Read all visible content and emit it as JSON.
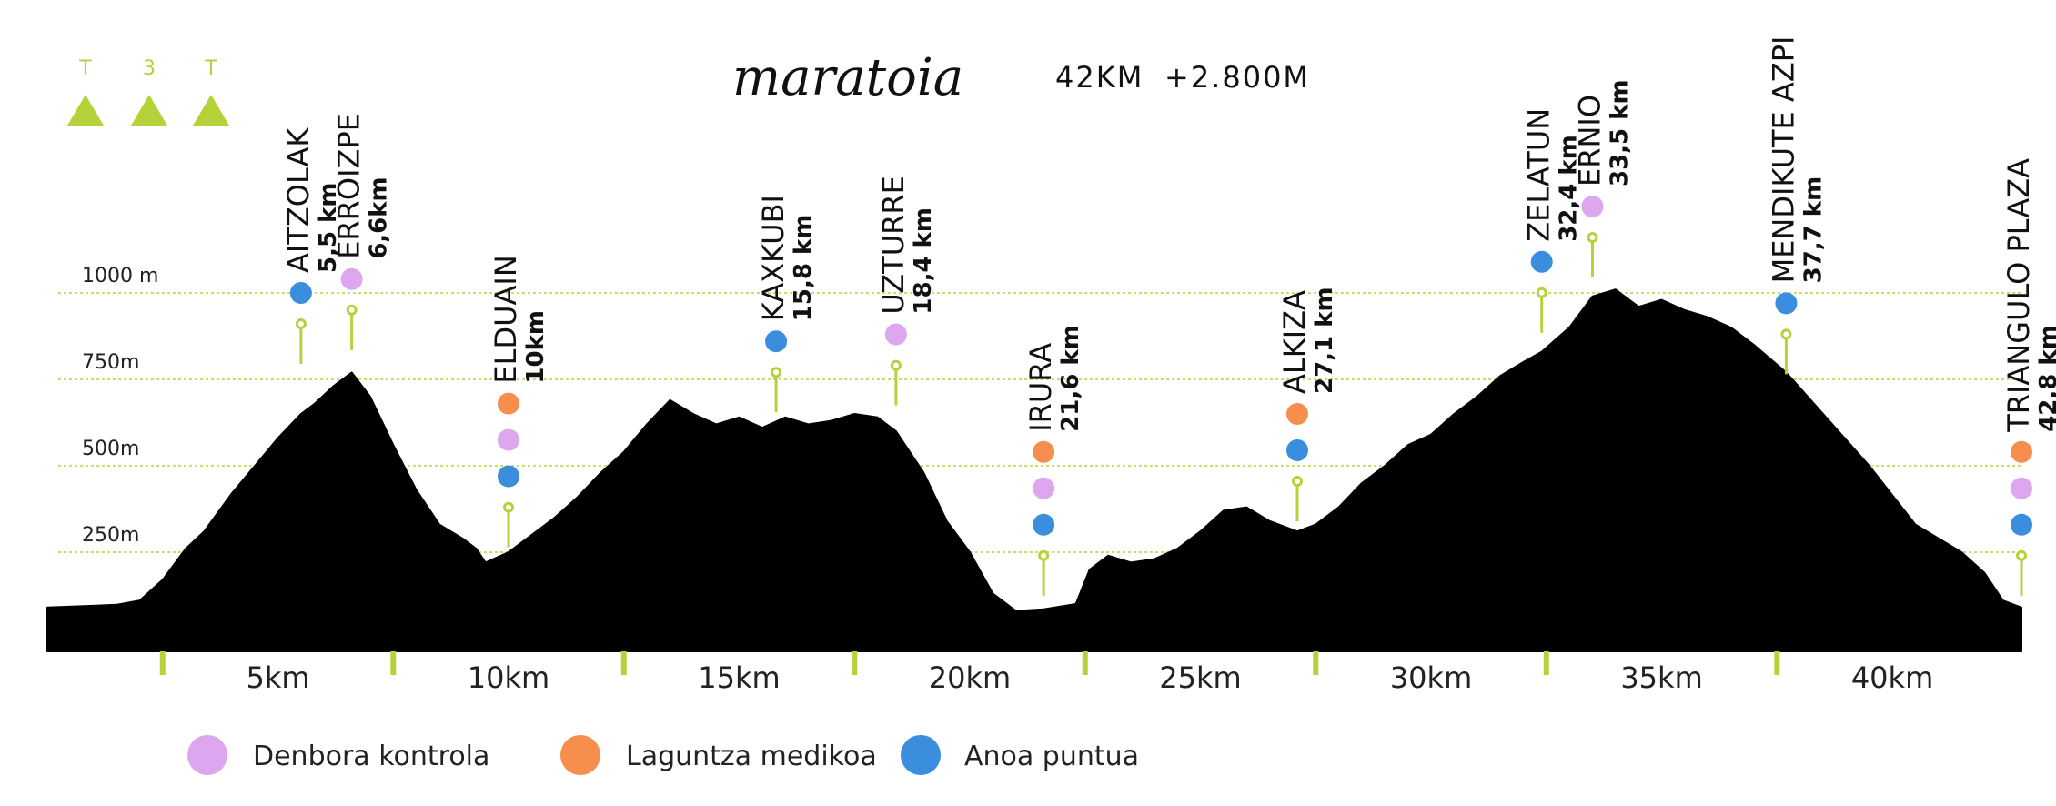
{
  "header": {
    "title": "maratoia",
    "distance": "42KM",
    "elevation_gain": "+2.800M",
    "logo": {
      "letters": [
        "T",
        "3",
        "T"
      ],
      "icon": "mountain-triangle"
    }
  },
  "colors": {
    "profile": "#000000",
    "accent": "#b6d23a",
    "time_control": "#dda6ee",
    "medical": "#f68e4e",
    "food": "#3b8ede",
    "gridline": "#b6d23a"
  },
  "chart_data": {
    "type": "area",
    "title": "maratoia",
    "xlabel": "",
    "ylabel": "",
    "x_unit": "km",
    "y_unit": "m",
    "xlim": [
      0,
      42.8
    ],
    "ylim": [
      -200,
      1300
    ],
    "grid": true,
    "legend_position": "bottom-left",
    "y_ticks": [
      {
        "value": 250,
        "label": "250m"
      },
      {
        "value": 500,
        "label": "500m"
      },
      {
        "value": 750,
        "label": "750m"
      },
      {
        "value": 1000,
        "label": "1000 m"
      }
    ],
    "x_ticks": [
      {
        "value": 5,
        "label": "5km"
      },
      {
        "value": 10,
        "label": "10km"
      },
      {
        "value": 15,
        "label": "15km"
      },
      {
        "value": 20,
        "label": "20km"
      },
      {
        "value": 25,
        "label": "25km"
      },
      {
        "value": 30,
        "label": "30km"
      },
      {
        "value": 35,
        "label": "35km"
      },
      {
        "value": 40,
        "label": "40km"
      }
    ],
    "x_minor_ticks": [
      2.5,
      7.5,
      12.5,
      17.5,
      22.5,
      27.5,
      32.5,
      37.5
    ],
    "profile": [
      [
        0,
        90
      ],
      [
        1,
        95
      ],
      [
        1.5,
        98
      ],
      [
        2,
        110
      ],
      [
        2.5,
        170
      ],
      [
        3,
        260
      ],
      [
        3.4,
        310
      ],
      [
        4,
        420
      ],
      [
        4.5,
        500
      ],
      [
        5,
        580
      ],
      [
        5.5,
        650
      ],
      [
        5.8,
        680
      ],
      [
        6.2,
        730
      ],
      [
        6.6,
        770
      ],
      [
        7,
        700
      ],
      [
        7.5,
        560
      ],
      [
        8,
        430
      ],
      [
        8.5,
        330
      ],
      [
        9,
        290
      ],
      [
        9.3,
        260
      ],
      [
        9.5,
        220
      ],
      [
        10,
        250
      ],
      [
        10.5,
        300
      ],
      [
        11,
        350
      ],
      [
        11.5,
        410
      ],
      [
        12,
        480
      ],
      [
        12.5,
        540
      ],
      [
        13,
        620
      ],
      [
        13.5,
        690
      ],
      [
        14,
        650
      ],
      [
        14.5,
        620
      ],
      [
        15,
        640
      ],
      [
        15.5,
        610
      ],
      [
        16,
        640
      ],
      [
        16.5,
        620
      ],
      [
        17,
        630
      ],
      [
        17.5,
        650
      ],
      [
        18,
        640
      ],
      [
        18.4,
        600
      ],
      [
        19,
        480
      ],
      [
        19.5,
        340
      ],
      [
        20,
        250
      ],
      [
        20.5,
        130
      ],
      [
        21,
        80
      ],
      [
        21.6,
        85
      ],
      [
        22.3,
        100
      ],
      [
        22.6,
        200
      ],
      [
        23,
        240
      ],
      [
        23.5,
        220
      ],
      [
        24,
        230
      ],
      [
        24.5,
        260
      ],
      [
        25,
        310
      ],
      [
        25.5,
        370
      ],
      [
        26,
        380
      ],
      [
        26.5,
        340
      ],
      [
        27.1,
        310
      ],
      [
        27.5,
        330
      ],
      [
        28,
        380
      ],
      [
        28.5,
        450
      ],
      [
        29,
        500
      ],
      [
        29.5,
        560
      ],
      [
        30,
        590
      ],
      [
        30.5,
        650
      ],
      [
        31,
        700
      ],
      [
        31.5,
        760
      ],
      [
        32,
        800
      ],
      [
        32.4,
        830
      ],
      [
        33,
        900
      ],
      [
        33.5,
        990
      ],
      [
        34,
        1010
      ],
      [
        34.5,
        960
      ],
      [
        35,
        980
      ],
      [
        35.5,
        950
      ],
      [
        36,
        930
      ],
      [
        36.5,
        900
      ],
      [
        37,
        850
      ],
      [
        37.7,
        770
      ],
      [
        38.5,
        650
      ],
      [
        39.5,
        500
      ],
      [
        40.5,
        330
      ],
      [
        41.5,
        250
      ],
      [
        42,
        190
      ],
      [
        42.4,
        110
      ],
      [
        42.8,
        90
      ]
    ],
    "checkpoints": [
      {
        "name": "AITZOLAK",
        "km_label": "5,5 km",
        "km": 5.5,
        "services": [
          "food"
        ],
        "dot_elev": 1000
      },
      {
        "name": "ERROIZPE",
        "km_label": "6,6km",
        "km": 6.6,
        "services": [
          "time"
        ],
        "dot_elev": 1040
      },
      {
        "name": "ELDUAIN",
        "km_label": "10km",
        "km": 10.0,
        "services": [
          "medical",
          "time",
          "food"
        ],
        "dot_elev": 680
      },
      {
        "name": "KAXKUBI",
        "km_label": "15,8 km",
        "km": 15.8,
        "services": [
          "food"
        ],
        "dot_elev": 860
      },
      {
        "name": "UZTURRE",
        "km_label": "18,4 km",
        "km": 18.4,
        "services": [
          "time"
        ],
        "dot_elev": 880
      },
      {
        "name": "IRURA",
        "km_label": "21,6 km",
        "km": 21.6,
        "services": [
          "medical",
          "time",
          "food"
        ],
        "dot_elev": 540
      },
      {
        "name": "ALKIZA",
        "km_label": "27,1 km",
        "km": 27.1,
        "services": [
          "medical",
          "food"
        ],
        "dot_elev": 650
      },
      {
        "name": "ZELATUN",
        "km_label": "32,4 km",
        "km": 32.4,
        "services": [
          "food"
        ],
        "dot_elev": 1090
      },
      {
        "name": "ERNIO",
        "km_label": "33,5 km",
        "km": 33.5,
        "services": [
          "time"
        ],
        "dot_elev": 1250
      },
      {
        "name": "MENDIKUTE AZPI",
        "km_label": "37,7 km",
        "km": 37.7,
        "services": [
          "food"
        ],
        "dot_elev": 970
      },
      {
        "name": "TRIANGULO PLAZA",
        "km_label": "42,8 km",
        "km": 42.8,
        "services": [
          "medical",
          "time",
          "food"
        ],
        "dot_elev": 540
      }
    ],
    "legend": [
      {
        "key": "time",
        "label": "Denbora kontrola"
      },
      {
        "key": "medical",
        "label": "Laguntza medikoa"
      },
      {
        "key": "food",
        "label": "Anoa puntua"
      }
    ]
  }
}
